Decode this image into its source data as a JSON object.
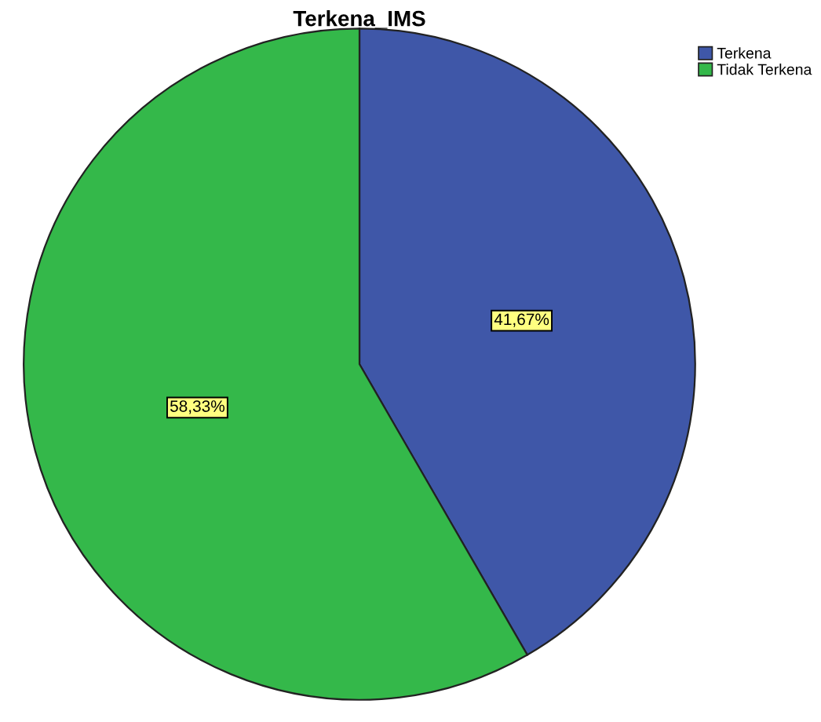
{
  "chart_data": {
    "type": "pie",
    "title": "Terkena_IMS",
    "categories": [
      "Terkena",
      "Tidak Terkena"
    ],
    "values": [
      41.67,
      58.33
    ],
    "colors": [
      "#3f57a8",
      "#34b84a"
    ],
    "value_labels": [
      "41,67%",
      "58,33%"
    ],
    "legend": "top right"
  }
}
